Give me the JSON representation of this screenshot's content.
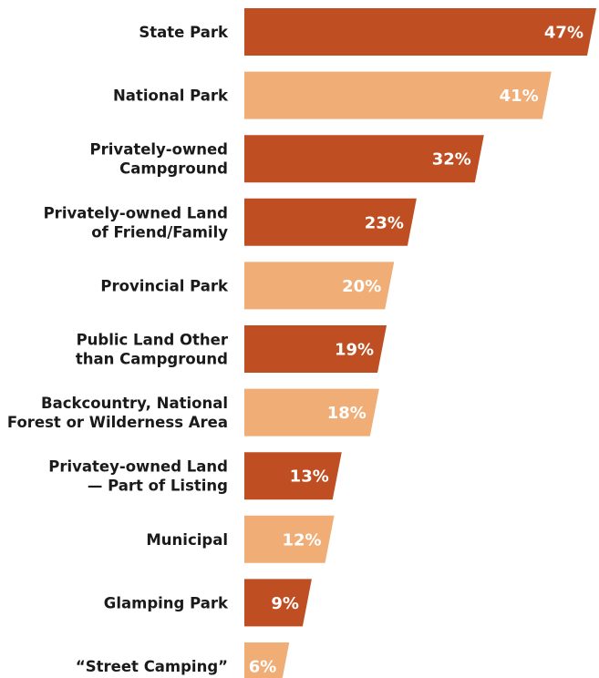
{
  "chart_data": {
    "type": "bar",
    "orientation": "horizontal",
    "categories": [
      [
        "State Park"
      ],
      [
        "National Park"
      ],
      [
        "Privately-owned",
        "Campground"
      ],
      [
        "Privately-owned Land",
        "of Friend/Family"
      ],
      [
        "Provincial Park"
      ],
      [
        "Public Land Other",
        "than Campground"
      ],
      [
        "Backcountry, National",
        "Forest or Wilderness Area"
      ],
      [
        "Privatey-owned Land",
        "— Part of Listing"
      ],
      [
        "Municipal"
      ],
      [
        "Glamping Park"
      ],
      [
        "“Street Camping”"
      ]
    ],
    "values": [
      47,
      41,
      32,
      23,
      20,
      19,
      18,
      13,
      12,
      9,
      6
    ],
    "value_labels": [
      "47%",
      "41%",
      "32%",
      "23%",
      "20%",
      "19%",
      "18%",
      "13%",
      "12%",
      "9%",
      "6%"
    ],
    "bar_colors": [
      "#bf4e22",
      "#f0ad76",
      "#bf4e22",
      "#bf4e22",
      "#f0ad76",
      "#bf4e22",
      "#f0ad76",
      "#bf4e22",
      "#f0ad76",
      "#bf4e22",
      "#f0ad76"
    ],
    "title": "",
    "xlabel": "",
    "ylabel": "",
    "xlim": [
      0,
      47
    ]
  }
}
